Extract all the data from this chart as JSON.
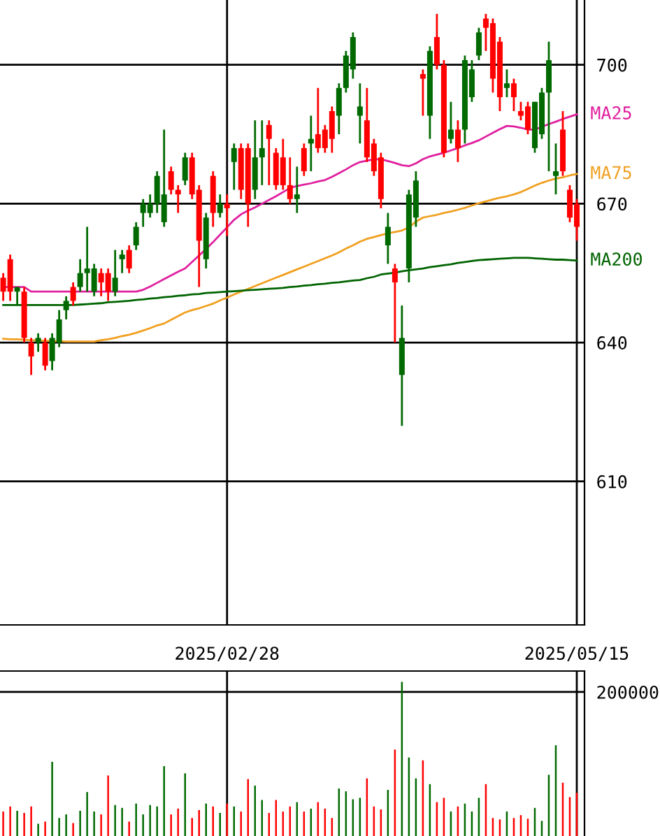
{
  "chart_data": [
    {
      "type": "candlestick",
      "categories": [
        null,
        null,
        null,
        null,
        null,
        null,
        null,
        null,
        null,
        null,
        null,
        null,
        null,
        null,
        null,
        null,
        null,
        null,
        null,
        null,
        null,
        null,
        null,
        null,
        null,
        null,
        null,
        null,
        null,
        null,
        null,
        null,
        "2025/02/28",
        null,
        null,
        null,
        null,
        null,
        null,
        null,
        null,
        null,
        null,
        null,
        null,
        null,
        null,
        null,
        null,
        null,
        null,
        null,
        null,
        null,
        null,
        null,
        null,
        null,
        null,
        null,
        null,
        null,
        null,
        null,
        null,
        null,
        null,
        null,
        null,
        null,
        null,
        null,
        null,
        null,
        null,
        null,
        null,
        null,
        null,
        null,
        null,
        null,
        "2025/05/15"
      ],
      "ohlc": [
        [
          654,
          655,
          649,
          651
        ],
        [
          658,
          659,
          649,
          651
        ],
        [
          651,
          652,
          648,
          652
        ],
        [
          651,
          652,
          640,
          641
        ],
        [
          640,
          641,
          633,
          637
        ],
        [
          640,
          642,
          638,
          641
        ],
        [
          640,
          641,
          634,
          635
        ],
        [
          636,
          642,
          634,
          641
        ],
        [
          640,
          647,
          639,
          645
        ],
        [
          647,
          650,
          645,
          649
        ],
        [
          652,
          653,
          648,
          649
        ],
        [
          652,
          658,
          651,
          655
        ],
        [
          655,
          665,
          651,
          656
        ],
        [
          651,
          657,
          650,
          656
        ],
        [
          655,
          656,
          650,
          653
        ],
        [
          655,
          656,
          649,
          651
        ],
        [
          651,
          660,
          650,
          654
        ],
        [
          658,
          660,
          655,
          659
        ],
        [
          660,
          661,
          655,
          656
        ],
        [
          661,
          666,
          660,
          665
        ],
        [
          668,
          671,
          665,
          670
        ],
        [
          668,
          672,
          667,
          670
        ],
        [
          670,
          677,
          668,
          676
        ],
        [
          666,
          686,
          665,
          672
        ],
        [
          677,
          678,
          672,
          673
        ],
        [
          673,
          674,
          668,
          672
        ],
        [
          675,
          681,
          674,
          680
        ],
        [
          680,
          681,
          671,
          672
        ],
        [
          673,
          674,
          652,
          662
        ],
        [
          658,
          668,
          656,
          667
        ],
        [
          676,
          677,
          665,
          668
        ],
        [
          668,
          672,
          667,
          670
        ],
        [
          670,
          672,
          663,
          669
        ],
        [
          679,
          683,
          673,
          682
        ],
        [
          682,
          683,
          671,
          673
        ],
        [
          682,
          683,
          665,
          670
        ],
        [
          673,
          688,
          671,
          680
        ],
        [
          680,
          688,
          674,
          682
        ],
        [
          687,
          688,
          674,
          684
        ],
        [
          681,
          682,
          673,
          674
        ],
        [
          680,
          684,
          673,
          674
        ],
        [
          674,
          680,
          670,
          671
        ],
        [
          671,
          678,
          668,
          672
        ],
        [
          682,
          683,
          676,
          677
        ],
        [
          683,
          689,
          677,
          684
        ],
        [
          685,
          695,
          681,
          682
        ],
        [
          686,
          687,
          681,
          682
        ],
        [
          690,
          691,
          681,
          684
        ],
        [
          689,
          696,
          685,
          695
        ],
        [
          695,
          703,
          694,
          702
        ],
        [
          699,
          707,
          697,
          706
        ],
        [
          689,
          696,
          683,
          691
        ],
        [
          688,
          695,
          679,
          680
        ],
        [
          683,
          684,
          676,
          677
        ],
        [
          680,
          681,
          669,
          671
        ],
        [
          661,
          668,
          657,
          665
        ],
        [
          656,
          657,
          640,
          653
        ],
        [
          633,
          648,
          622,
          641
        ],
        [
          656,
          673,
          653,
          672
        ],
        [
          667,
          677,
          665,
          675
        ],
        [
          698,
          699,
          689,
          697
        ],
        [
          689,
          704,
          684,
          703
        ],
        [
          706,
          711,
          699,
          700
        ],
        [
          700,
          701,
          680,
          681
        ],
        [
          684,
          692,
          683,
          686
        ],
        [
          686,
          688,
          679,
          682
        ],
        [
          686,
          702,
          683,
          701
        ],
        [
          693,
          701,
          692,
          699
        ],
        [
          702,
          708,
          701,
          707
        ],
        [
          710,
          711,
          703,
          708
        ],
        [
          709,
          710,
          694,
          697
        ],
        [
          705,
          706,
          690,
          693
        ],
        [
          695,
          699,
          693,
          696
        ],
        [
          696,
          697,
          690,
          693
        ],
        [
          690,
          692,
          688,
          689
        ],
        [
          691,
          692,
          685,
          686
        ],
        [
          682,
          692,
          681,
          692
        ],
        [
          685,
          695,
          684,
          694
        ],
        [
          694,
          705,
          677,
          701
        ],
        [
          676,
          683,
          672,
          677
        ],
        [
          686,
          690,
          676,
          677
        ],
        [
          673,
          674,
          666,
          667
        ],
        [
          670,
          671,
          662,
          665
        ]
      ],
      "colors": [
        "#ff0000",
        "#ff0000",
        "#006a00",
        "#ff0000",
        "#ff0000",
        "#006a00",
        "#ff0000",
        "#006a00",
        "#006a00",
        "#006a00",
        "#ff0000",
        "#006a00",
        "#006a00",
        "#006a00",
        "#ff0000",
        "#ff0000",
        "#006a00",
        "#006a00",
        "#ff0000",
        "#006a00",
        "#006a00",
        "#006a00",
        "#006a00",
        "#006a00",
        "#ff0000",
        "#ff0000",
        "#006a00",
        "#ff0000",
        "#ff0000",
        "#006a00",
        "#ff0000",
        "#006a00",
        "#ff0000",
        "#006a00",
        "#ff0000",
        "#ff0000",
        "#006a00",
        "#006a00",
        "#ff0000",
        "#ff0000",
        "#ff0000",
        "#ff0000",
        "#006a00",
        "#ff0000",
        "#006a00",
        "#ff0000",
        "#ff0000",
        "#ff0000",
        "#006a00",
        "#006a00",
        "#006a00",
        "#006a00",
        "#ff0000",
        "#ff0000",
        "#ff0000",
        "#006a00",
        "#ff0000",
        "#006a00",
        "#006a00",
        "#006a00",
        "#ff0000",
        "#006a00",
        "#ff0000",
        "#ff0000",
        "#006a00",
        "#ff0000",
        "#006a00",
        "#006a00",
        "#006a00",
        "#ff0000",
        "#ff0000",
        "#ff0000",
        "#006a00",
        "#ff0000",
        "#ff0000",
        "#ff0000",
        "#006a00",
        "#006a00",
        "#006a00",
        "#006a00",
        "#ff0000",
        "#ff0000",
        "#ff0000"
      ],
      "series": [
        {
          "type": "line",
          "name": "MA25",
          "color": "#e0209f",
          "values": [
            652,
            652,
            652,
            652,
            651,
            651,
            651,
            651,
            651,
            651,
            651,
            651,
            651,
            651,
            651,
            651,
            651,
            651,
            651,
            651,
            651.4,
            652.1,
            652.9,
            653.7,
            654.5,
            655.3,
            656.0,
            657.4,
            658.8,
            660.2,
            661.7,
            663.3,
            664.9,
            666.5,
            667.7,
            668.5,
            669.2,
            670.0,
            670.8,
            671.6,
            672.5,
            673.4,
            673.8,
            674.1,
            674.4,
            674.8,
            675.1,
            675.8,
            676.6,
            677.4,
            678.3,
            679.0,
            679.3,
            679.6,
            679.6,
            679.2,
            678.8,
            678.3,
            678.1,
            678.7,
            679.6,
            680.2,
            680.6,
            681.0,
            681.5,
            682.0,
            682.6,
            683.1,
            683.7,
            684.5,
            685.3,
            686.1,
            686.8,
            686.7,
            686.4,
            686.0,
            686.0,
            686.6,
            687.2,
            687.7,
            688.3,
            688.8,
            689.3
          ]
        },
        {
          "type": "line",
          "name": "MA75",
          "color": "#f0a020",
          "values": [
            640.8,
            640.7,
            640.7,
            640.6,
            640.5,
            640.4,
            640.4,
            640.3,
            640.3,
            640.2,
            640.2,
            640.2,
            640.2,
            640.2,
            640.5,
            640.7,
            641.0,
            641.4,
            641.7,
            642.1,
            642.6,
            643.1,
            643.7,
            644.1,
            644.9,
            645.7,
            646.5,
            647.0,
            647.4,
            647.9,
            648.4,
            649.1,
            649.7,
            650.4,
            651.0,
            651.6,
            652.2,
            652.8,
            653.4,
            654.0,
            654.6,
            655.2,
            655.8,
            656.4,
            657.0,
            657.6,
            658.2,
            658.8,
            659.5,
            660.3,
            661.0,
            661.8,
            662.4,
            662.8,
            663.2,
            663.6,
            663.9,
            664.2,
            664.9,
            666.1,
            667.0,
            667.3,
            667.6,
            668.0,
            668.3,
            668.7,
            669.1,
            669.6,
            670.1,
            670.5,
            670.9,
            671.3,
            671.6,
            672.0,
            672.5,
            673.2,
            673.9,
            674.5,
            675.0,
            675.4,
            675.7,
            676.1,
            676.4
          ]
        },
        {
          "type": "line",
          "name": "MA200",
          "color": "#006400",
          "values": [
            648.1,
            648.1,
            648.1,
            648.1,
            648.1,
            648.1,
            648.1,
            648.1,
            648.1,
            648.1,
            648.1,
            648.2,
            648.3,
            648.4,
            648.5,
            648.7,
            648.8,
            648.9,
            649.0,
            649.2,
            649.3,
            649.5,
            649.6,
            649.8,
            649.9,
            650.1,
            650.2,
            650.4,
            650.5,
            650.7,
            650.8,
            650.9,
            651.0,
            651.1,
            651.2,
            651.3,
            651.4,
            651.5,
            651.6,
            651.7,
            651.8,
            652.0,
            652.1,
            652.3,
            652.4,
            652.6,
            652.7,
            652.9,
            653.0,
            653.2,
            653.4,
            653.5,
            653.9,
            654.2,
            654.7,
            654.9,
            655.1,
            655.4,
            655.6,
            655.8,
            656.0,
            656.3,
            656.5,
            656.7,
            656.9,
            657.2,
            657.4,
            657.6,
            657.8,
            657.9,
            658.0,
            658.1,
            658.2,
            658.3,
            658.3,
            658.3,
            658.2,
            658.1,
            658.0,
            657.9,
            657.9,
            657.8,
            657.7
          ]
        }
      ],
      "ylim": [
        579,
        714
      ],
      "yticks": [
        610,
        640,
        670,
        700
      ],
      "grid": true
    },
    {
      "type": "bar",
      "categories": [
        null,
        null,
        null,
        null,
        null,
        null,
        null,
        null,
        null,
        null,
        null,
        null,
        null,
        null,
        null,
        null,
        null,
        null,
        null,
        null,
        null,
        null,
        null,
        null,
        null,
        null,
        null,
        null,
        null,
        null,
        null,
        null,
        "2025/02/28",
        null,
        null,
        null,
        null,
        null,
        null,
        null,
        null,
        null,
        null,
        null,
        null,
        null,
        null,
        null,
        null,
        null,
        null,
        null,
        null,
        null,
        null,
        null,
        null,
        null,
        null,
        null,
        null,
        null,
        null,
        null,
        null,
        null,
        null,
        null,
        null,
        null,
        null,
        null,
        null,
        null,
        null,
        null,
        null,
        null,
        null,
        null,
        null,
        null,
        "2025/05/15"
      ],
      "values": [
        34000,
        41000,
        35000,
        32000,
        41000,
        17000,
        20000,
        103000,
        25000,
        30000,
        18000,
        35000,
        61000,
        34000,
        30000,
        84000,
        43000,
        39000,
        20000,
        45000,
        30000,
        43000,
        41000,
        97000,
        30000,
        38000,
        87000,
        25000,
        36000,
        45000,
        41000,
        32000,
        45000,
        41000,
        34000,
        79000,
        70000,
        50000,
        32000,
        50000,
        34000,
        41000,
        47000,
        34000,
        38000,
        47000,
        38000,
        25000,
        66000,
        62000,
        51000,
        53000,
        80000,
        41000,
        37000,
        64000,
        120000,
        214000,
        109000,
        80000,
        105000,
        72000,
        47000,
        53000,
        34000,
        41000,
        45000,
        34000,
        53000,
        72000,
        25000,
        23000,
        34000,
        25000,
        29000,
        24000,
        39000,
        21000,
        85000,
        126000,
        74000,
        54000,
        60000
      ],
      "colors": [
        "#ff0000",
        "#ff0000",
        "#006a00",
        "#ff0000",
        "#ff0000",
        "#006a00",
        "#ff0000",
        "#006a00",
        "#006a00",
        "#006a00",
        "#ff0000",
        "#006a00",
        "#006a00",
        "#006a00",
        "#ff0000",
        "#ff0000",
        "#006a00",
        "#006a00",
        "#ff0000",
        "#006a00",
        "#006a00",
        "#006a00",
        "#006a00",
        "#006a00",
        "#ff0000",
        "#ff0000",
        "#006a00",
        "#ff0000",
        "#ff0000",
        "#006a00",
        "#ff0000",
        "#006a00",
        "#ff0000",
        "#006a00",
        "#ff0000",
        "#ff0000",
        "#006a00",
        "#006a00",
        "#ff0000",
        "#ff0000",
        "#ff0000",
        "#ff0000",
        "#006a00",
        "#ff0000",
        "#006a00",
        "#ff0000",
        "#ff0000",
        "#ff0000",
        "#006a00",
        "#006a00",
        "#006a00",
        "#006a00",
        "#ff0000",
        "#ff0000",
        "#ff0000",
        "#006a00",
        "#ff0000",
        "#006a00",
        "#006a00",
        "#006a00",
        "#ff0000",
        "#006a00",
        "#ff0000",
        "#ff0000",
        "#006a00",
        "#ff0000",
        "#006a00",
        "#006a00",
        "#006a00",
        "#ff0000",
        "#ff0000",
        "#ff0000",
        "#006a00",
        "#ff0000",
        "#ff0000",
        "#ff0000",
        "#006a00",
        "#006a00",
        "#006a00",
        "#006a00",
        "#ff0000",
        "#ff0000",
        "#ff0000"
      ],
      "ylim": [
        0,
        229000
      ],
      "yticks": [
        200000
      ],
      "grid": true,
      "tick_labels": "y"
    }
  ]
}
